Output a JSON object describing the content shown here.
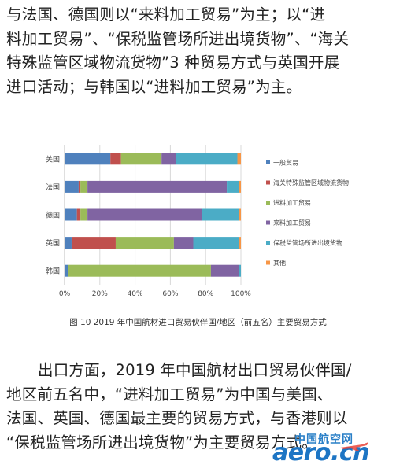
{
  "paragraph_top": [
    "与法国、德国则以“来料加工贸易”为主；以“进",
    "料加工贸易”、“保税监管场所进出境货物”、“海关",
    "特殊监管区域物流货物”3 种贸易方式与英国开展",
    "进口活动；与韩国以“进料加工贸易”为主。"
  ],
  "paragraph_bottom": [
    "出口方面，2019 年中国航材出口贸易伙伴国/",
    "地区前五名中，“进料加工贸易”为中国与美国、",
    "法国、英国、德国最主要的贸易方式，与香港则以",
    "“保税监管场所进出境货物”为主要贸易方式。"
  ],
  "caption": "图 10 2019 年中国航材进口贸易伙伴国/地区（前五名）主要贸易方式",
  "watermark": {
    "cn": "中国航空网",
    "en": "aero.cn"
  },
  "colors": {
    "一般贸易": "#4f81bd",
    "海关特殊监管区域物流货物": "#c0504d",
    "进料加工贸易": "#9bbb59",
    "来料加工贸易": "#8064a2",
    "保税监管场所进出境货物": "#4bacc6",
    "其他": "#f79646"
  },
  "chart_data": {
    "type": "bar",
    "orientation": "horizontal",
    "stacked": "percent",
    "categories": [
      "美国",
      "法国",
      "德国",
      "英国",
      "韩国"
    ],
    "series": [
      {
        "name": "一般贸易",
        "values": [
          26,
          8,
          7,
          4,
          2
        ]
      },
      {
        "name": "海关特殊监管区域物流货物",
        "values": [
          6,
          1,
          2,
          25,
          0
        ]
      },
      {
        "name": "进料加工贸易",
        "values": [
          23,
          4,
          4,
          33,
          81
        ]
      },
      {
        "name": "来料加工贸易",
        "values": [
          8,
          79,
          65,
          11,
          16
        ]
      },
      {
        "name": "保税监管场所进出境货物",
        "values": [
          35,
          7,
          21,
          26,
          1
        ]
      },
      {
        "name": "其他",
        "values": [
          2,
          1,
          1,
          1,
          0
        ]
      }
    ],
    "x_ticks": [
      "0%",
      "20%",
      "40%",
      "60%",
      "80%",
      "100%"
    ],
    "xlim": [
      0,
      100
    ],
    "grid": "vertical",
    "legend": "right"
  }
}
